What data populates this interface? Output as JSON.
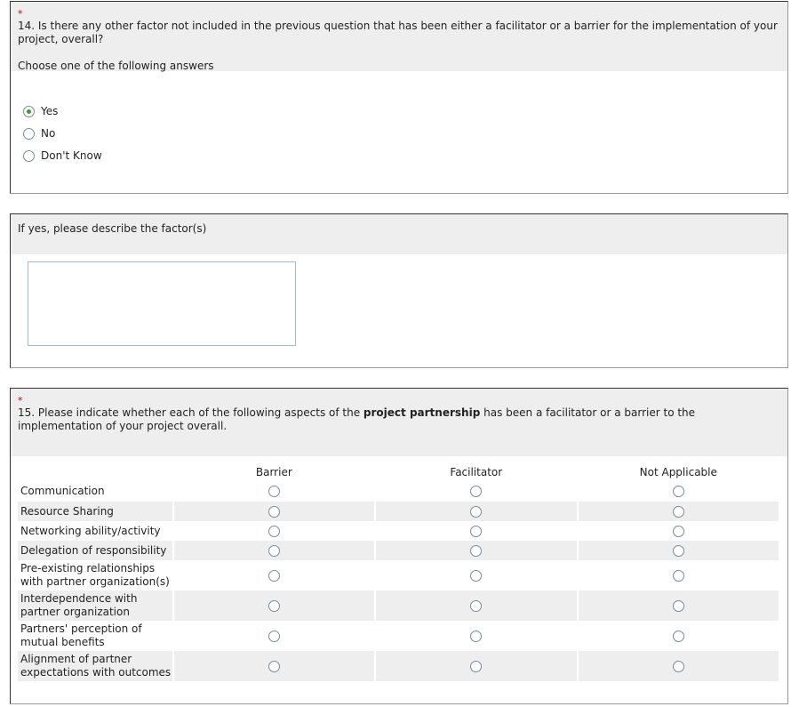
{
  "q14": {
    "required": "*",
    "text": "14. Is there any other factor not included in the previous question that has been either a facilitator or a barrier for the implementation of your project, overall?",
    "instruction": "Choose one of the following answers",
    "options": [
      {
        "label": "Yes",
        "selected": true
      },
      {
        "label": "No",
        "selected": false
      },
      {
        "label": "Don't Know",
        "selected": false
      }
    ]
  },
  "q14b": {
    "text": "If yes, please describe the factor(s)",
    "value": ""
  },
  "q15": {
    "required": "*",
    "text_before": "15. Please indicate whether each of the following aspects of the ",
    "text_bold": "project partnership",
    "text_after": " has been a facilitator or a barrier to the implementation of your project overall.",
    "columns": [
      "Barrier",
      "Facilitator",
      "Not Applicable"
    ],
    "rows": [
      "Communication",
      "Resource Sharing",
      "Networking ability/activity",
      "Delegation of responsibility",
      "Pre-existing relationships with partner organization(s)",
      "Interdependence with partner organization",
      "Partners' perception of mutual benefits",
      "Alignment of partner expectations with outcomes"
    ]
  }
}
